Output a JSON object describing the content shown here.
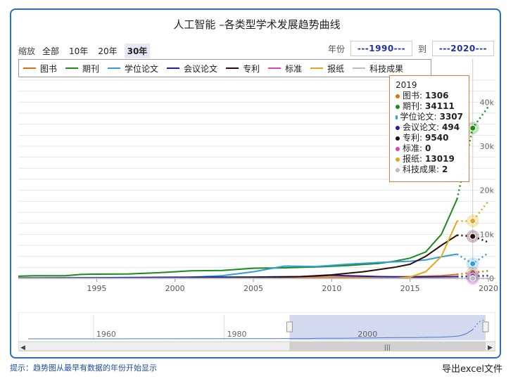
{
  "title": "人工智能 –各类型学术发展趋势曲线",
  "zoom": {
    "label": "缩放",
    "buttons": [
      "全部",
      "10年",
      "20年",
      "30年"
    ],
    "active": "30年"
  },
  "range": {
    "from_label": "年份",
    "from_value": "---1990---",
    "to_label": "到",
    "to_value": "---2020---"
  },
  "legend": [
    {
      "name": "图书",
      "color": "#e46c0a"
    },
    {
      "name": "期刊",
      "color": "#1a8c1a"
    },
    {
      "name": "学位论文",
      "color": "#2e9de0"
    },
    {
      "name": "会议论文",
      "color": "#1e1ea0"
    },
    {
      "name": "专利",
      "color": "#2b0a0a"
    },
    {
      "name": "标准",
      "color": "#e040c0"
    },
    {
      "name": "报纸",
      "color": "#e0a814"
    },
    {
      "name": "科技成果",
      "color": "#bbbbbb"
    }
  ],
  "tooltip": {
    "year": "2019",
    "rows": [
      {
        "name": "图书",
        "value": "1306",
        "color": "#e46c0a"
      },
      {
        "name": "期刊",
        "value": "34111",
        "color": "#1a8c1a"
      },
      {
        "name": "学位论文",
        "value": "3307",
        "color": "#2e9de0"
      },
      {
        "name": "会议论文",
        "value": "494",
        "color": "#1e1ea0"
      },
      {
        "name": "专利",
        "value": "9540",
        "color": "#2b0a0a"
      },
      {
        "name": "标准",
        "value": "0",
        "color": "#e040c0"
      },
      {
        "name": "报纸",
        "value": "13019",
        "color": "#e0a814"
      },
      {
        "name": "科技成果",
        "value": "2",
        "color": "#bbbbbb"
      }
    ]
  },
  "chart_data": {
    "type": "line",
    "x_ticks": [
      1995,
      2000,
      2005,
      2010,
      2015,
      2020
    ],
    "y_ticks": [
      "0",
      "10k",
      "20k",
      "30k",
      "40k"
    ],
    "xlim": [
      1990,
      2020
    ],
    "ylim": [
      0,
      45000
    ],
    "grid": true,
    "crosshair_year": 2019,
    "series": [
      {
        "name": "图书",
        "color": "#e46c0a",
        "solid": [
          [
            1990,
            100
          ],
          [
            1995,
            120
          ],
          [
            2000,
            150
          ],
          [
            2005,
            200
          ],
          [
            2010,
            250
          ],
          [
            2015,
            400
          ],
          [
            2017,
            600
          ],
          [
            2018,
            900
          ]
        ],
        "dotted": [
          [
            2018,
            900
          ],
          [
            2019,
            1306
          ],
          [
            2020,
            1700
          ]
        ]
      },
      {
        "name": "期刊",
        "color": "#1a8c1a",
        "solid": [
          [
            1990,
            500
          ],
          [
            1991,
            600
          ],
          [
            1993,
            600
          ],
          [
            1994,
            900
          ],
          [
            1995,
            950
          ],
          [
            1997,
            1000
          ],
          [
            1999,
            1300
          ],
          [
            2001,
            1700
          ],
          [
            2003,
            1800
          ],
          [
            2005,
            2300
          ],
          [
            2007,
            2400
          ],
          [
            2009,
            2600
          ],
          [
            2011,
            2900
          ],
          [
            2013,
            3400
          ],
          [
            2014,
            3900
          ],
          [
            2015,
            4600
          ],
          [
            2016,
            6000
          ],
          [
            2017,
            10000
          ],
          [
            2018,
            18000
          ]
        ],
        "dotted": [
          [
            2018,
            18000
          ],
          [
            2019,
            34111
          ],
          [
            2020,
            39000
          ]
        ]
      },
      {
        "name": "学位论文",
        "color": "#2e9de0",
        "solid": [
          [
            1990,
            50
          ],
          [
            1995,
            50
          ],
          [
            2000,
            100
          ],
          [
            2003,
            600
          ],
          [
            2005,
            1500
          ],
          [
            2007,
            2800
          ],
          [
            2009,
            2700
          ],
          [
            2011,
            3200
          ],
          [
            2013,
            3600
          ],
          [
            2015,
            3900
          ],
          [
            2016,
            4200
          ],
          [
            2017,
            4900
          ],
          [
            2018,
            5500
          ]
        ],
        "dotted": [
          [
            2018,
            5500
          ],
          [
            2019,
            3307
          ],
          [
            2020,
            5800
          ]
        ]
      },
      {
        "name": "会议论文",
        "color": "#1e1ea0",
        "solid": [
          [
            1990,
            100
          ],
          [
            1995,
            150
          ],
          [
            2000,
            250
          ],
          [
            2005,
            300
          ],
          [
            2008,
            400
          ],
          [
            2010,
            700
          ],
          [
            2011,
            600
          ],
          [
            2013,
            400
          ],
          [
            2015,
            300
          ],
          [
            2017,
            350
          ],
          [
            2018,
            400
          ]
        ],
        "dotted": [
          [
            2018,
            400
          ],
          [
            2019,
            494
          ],
          [
            2020,
            600
          ]
        ]
      },
      {
        "name": "专利",
        "color": "#2b0a0a",
        "solid": [
          [
            1990,
            0
          ],
          [
            2000,
            0
          ],
          [
            2005,
            150
          ],
          [
            2008,
            400
          ],
          [
            2010,
            800
          ],
          [
            2012,
            1500
          ],
          [
            2014,
            2500
          ],
          [
            2015,
            3200
          ],
          [
            2016,
            5000
          ],
          [
            2017,
            7500
          ],
          [
            2018,
            9800
          ]
        ],
        "dotted": [
          [
            2018,
            9800
          ],
          [
            2019,
            9540
          ],
          [
            2020,
            8200
          ]
        ]
      },
      {
        "name": "标准",
        "color": "#e040c0",
        "solid": [
          [
            1990,
            0
          ],
          [
            2018,
            0
          ]
        ],
        "dotted": [
          [
            2018,
            0
          ],
          [
            2019,
            0
          ],
          [
            2020,
            0
          ]
        ]
      },
      {
        "name": "报纸",
        "color": "#e0a814",
        "solid": [
          [
            1990,
            0
          ],
          [
            2014,
            0
          ],
          [
            2015,
            300
          ],
          [
            2016,
            1500
          ],
          [
            2017,
            5000
          ],
          [
            2018,
            13000
          ]
        ],
        "dotted": [
          [
            2018,
            13000
          ],
          [
            2019,
            13019
          ],
          [
            2020,
            17500
          ]
        ]
      },
      {
        "name": "科技成果",
        "color": "#bbbbbb",
        "solid": [
          [
            1990,
            0
          ],
          [
            2018,
            0
          ]
        ],
        "dotted": [
          [
            2018,
            0
          ],
          [
            2019,
            2
          ],
          [
            2020,
            1
          ]
        ]
      }
    ],
    "navigator": {
      "ticks": [
        "1960",
        "1980",
        "2000"
      ]
    }
  },
  "footer": {
    "hint": "提示：趋势图从最早有数据的年份开始显示",
    "export": "导出excel文件"
  }
}
